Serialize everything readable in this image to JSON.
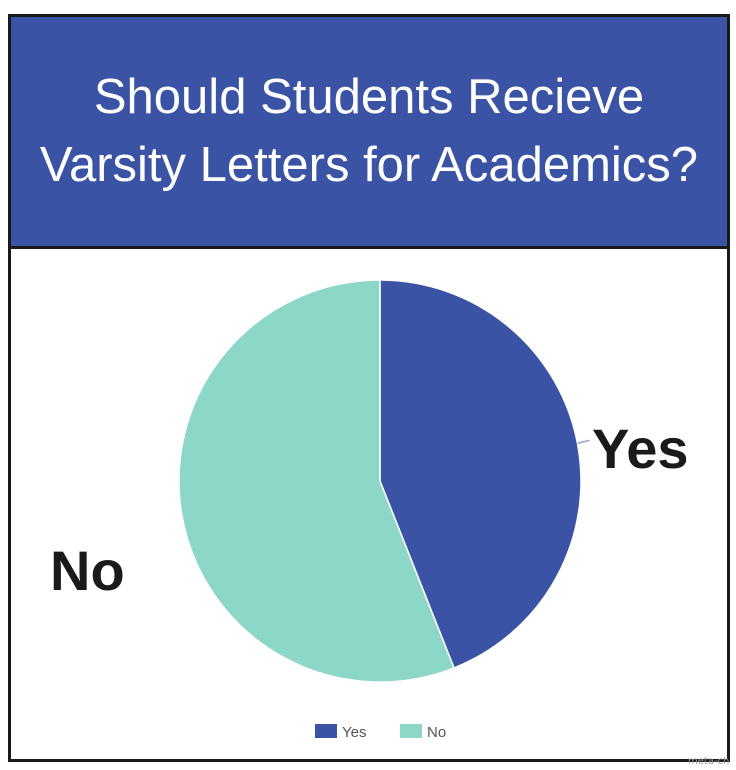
{
  "chart_data": {
    "type": "pie",
    "title": "Should Students Recieve Varsity Letters for Academics?",
    "categories": [
      "Yes",
      "No"
    ],
    "values": [
      44,
      56
    ],
    "colors": [
      "#3a53a4",
      "#8dd7c9"
    ],
    "slice_labels": [
      "Yes",
      "No"
    ],
    "legend": {
      "placement": "bottom",
      "entries": [
        "Yes",
        "No"
      ]
    }
  },
  "watermark": "meta-ch"
}
